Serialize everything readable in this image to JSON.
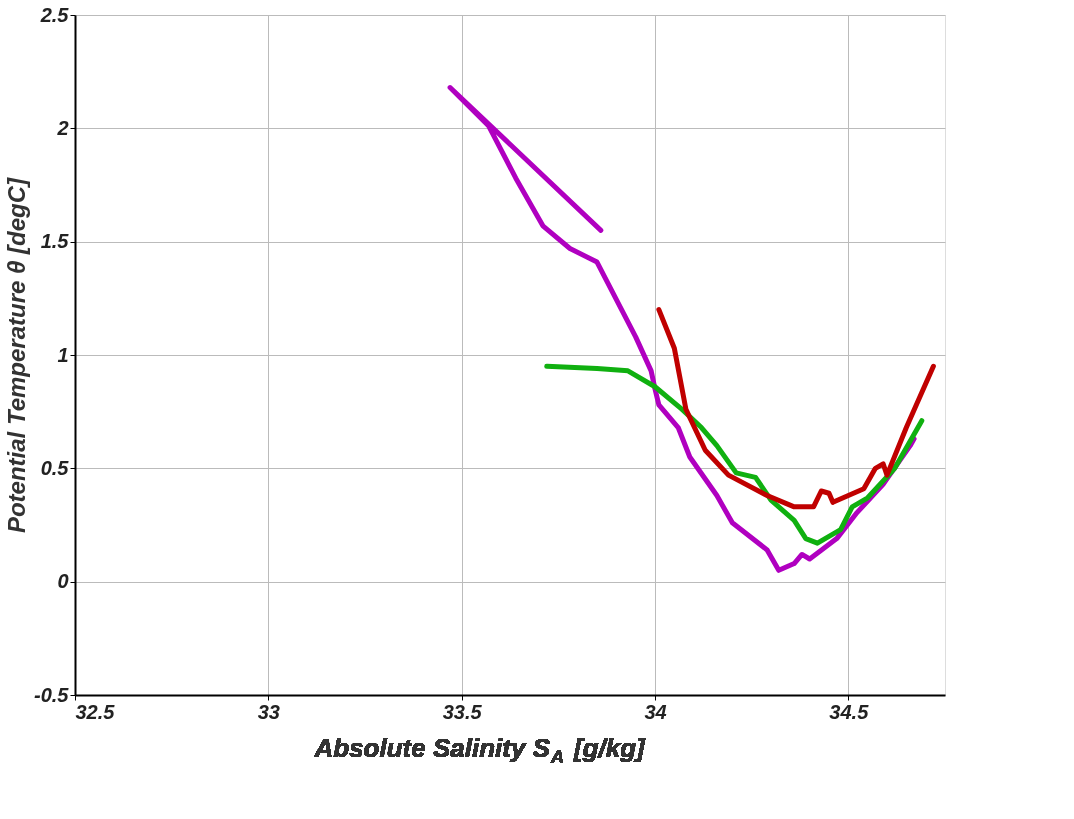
{
  "chart_data": {
    "type": "line",
    "xlabel": "Absolute Salinity S$_{A}$ [g/kg]",
    "ylabel": "Potential Temperature θ [degC]",
    "xlim": [
      32.5,
      34.75
    ],
    "ylim": [
      -0.5,
      2.5
    ],
    "xticks": [
      32.5,
      33,
      33.5,
      34,
      34.5
    ],
    "yticks": [
      -0.5,
      0,
      0.5,
      1,
      1.5,
      2,
      2.5
    ],
    "grid": true,
    "marker": "none",
    "line_style": "solid",
    "series": [
      {
        "color": "#b000c0",
        "x": [
          33.86,
          33.47,
          33.57,
          33.64,
          33.71,
          33.78,
          33.85,
          33.95,
          33.99,
          34.0,
          34.01,
          34.06,
          34.09,
          34.16,
          34.2,
          34.29,
          34.32,
          34.36,
          34.38,
          34.4,
          34.47,
          34.52,
          34.59,
          34.66,
          34.67
        ],
        "values": [
          1.55,
          2.18,
          2.01,
          1.78,
          1.57,
          1.47,
          1.41,
          1.08,
          0.93,
          0.85,
          0.78,
          0.68,
          0.55,
          0.38,
          0.26,
          0.14,
          0.05,
          0.08,
          0.12,
          0.1,
          0.19,
          0.3,
          0.43,
          0.6,
          0.63
        ]
      },
      {
        "color": "#10b010",
        "x": [
          33.72,
          33.85,
          33.93,
          34.0,
          34.07,
          34.12,
          34.16,
          34.21,
          34.26,
          34.3,
          34.36,
          34.39,
          34.42,
          34.48,
          34.51,
          34.55,
          34.62,
          34.69
        ],
        "values": [
          0.95,
          0.94,
          0.93,
          0.86,
          0.76,
          0.68,
          0.6,
          0.48,
          0.46,
          0.36,
          0.27,
          0.19,
          0.17,
          0.23,
          0.33,
          0.37,
          0.5,
          0.71
        ]
      },
      {
        "color": "#c00000",
        "x": [
          34.01,
          34.05,
          34.08,
          34.13,
          34.19,
          34.29,
          34.36,
          34.41,
          34.43,
          34.45,
          34.46,
          34.54,
          34.57,
          34.59,
          34.6,
          34.65,
          34.72
        ],
        "values": [
          1.2,
          1.03,
          0.76,
          0.58,
          0.47,
          0.38,
          0.33,
          0.33,
          0.4,
          0.39,
          0.35,
          0.41,
          0.5,
          0.52,
          0.47,
          0.68,
          0.95
        ]
      }
    ]
  }
}
